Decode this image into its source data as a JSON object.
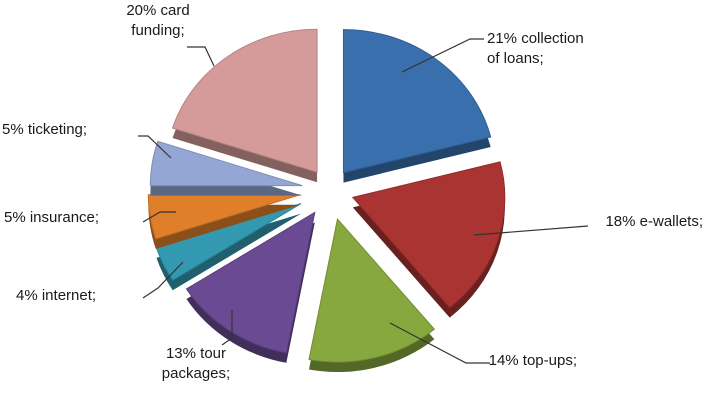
{
  "chart_data": {
    "type": "pie",
    "exploded": true,
    "three_d": true,
    "legend": "none",
    "slices": [
      {
        "label_lines": [
          "21% collection",
          "of loans;"
        ],
        "value": 21,
        "color": "#3a6fad"
      },
      {
        "label_lines": [
          "18% e-wallets;"
        ],
        "value": 18,
        "color": "#aa3432"
      },
      {
        "label_lines": [
          "14% top-ups;"
        ],
        "value": 14,
        "color": "#86a83e"
      },
      {
        "label_lines": [
          "13% tour",
          "packages;"
        ],
        "value": 13,
        "color": "#6a4a93"
      },
      {
        "label_lines": [
          "4% internet;"
        ],
        "value": 4,
        "color": "#3399b0"
      },
      {
        "label_lines": [
          "5% insurance;"
        ],
        "value": 5,
        "color": "#e07f2a"
      },
      {
        "label_lines": [
          "5% ticketing;"
        ],
        "value": 5,
        "color": "#94a6d3"
      },
      {
        "label_lines": [
          "20% card",
          "funding;"
        ],
        "value": 20,
        "color": "#d59b9a"
      }
    ]
  }
}
